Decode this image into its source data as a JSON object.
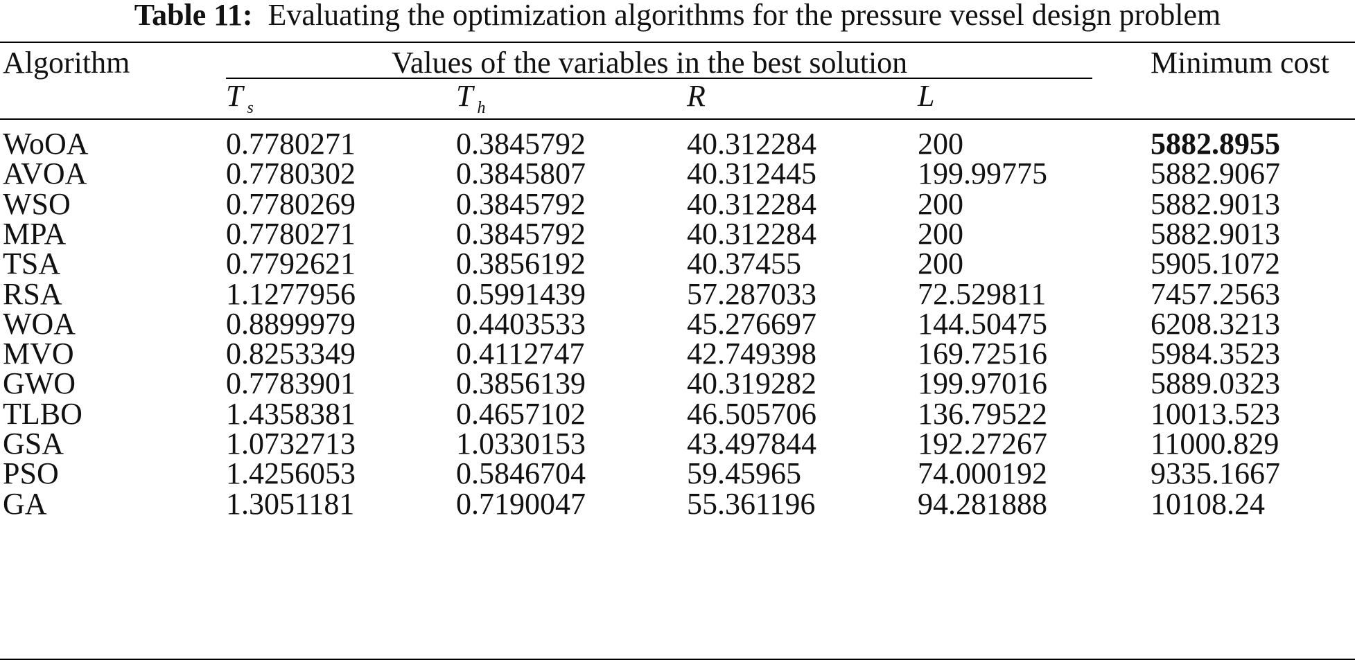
{
  "caption": {
    "label": "Table 11:",
    "text": "Evaluating the optimization algorithms for the pressure vessel design problem"
  },
  "header": {
    "algorithm": "Algorithm",
    "group": "Values of the variables in the best solution",
    "min_cost": "Minimum cost",
    "vars": [
      {
        "main": "T",
        "sub": "s"
      },
      {
        "main": "T",
        "sub": "h"
      },
      {
        "main": "R",
        "sub": ""
      },
      {
        "main": "L",
        "sub": ""
      }
    ]
  },
  "rows": [
    {
      "algo": "WoOA",
      "ts": "0.7780271",
      "th": "0.3845792",
      "r": "40.312284",
      "l": "200",
      "cost": "5882.8955",
      "best": true
    },
    {
      "algo": "AVOA",
      "ts": "0.7780302",
      "th": "0.3845807",
      "r": "40.312445",
      "l": "199.99775",
      "cost": "5882.9067",
      "best": false
    },
    {
      "algo": "WSO",
      "ts": "0.7780269",
      "th": "0.3845792",
      "r": "40.312284",
      "l": "200",
      "cost": "5882.9013",
      "best": false
    },
    {
      "algo": "MPA",
      "ts": "0.7780271",
      "th": "0.3845792",
      "r": "40.312284",
      "l": "200",
      "cost": "5882.9013",
      "best": false
    },
    {
      "algo": "TSA",
      "ts": "0.7792621",
      "th": "0.3856192",
      "r": "40.37455",
      "l": "200",
      "cost": "5905.1072",
      "best": false
    },
    {
      "algo": "RSA",
      "ts": "1.1277956",
      "th": "0.5991439",
      "r": "57.287033",
      "l": "72.529811",
      "cost": "7457.2563",
      "best": false
    },
    {
      "algo": "WOA",
      "ts": "0.8899979",
      "th": "0.4403533",
      "r": "45.276697",
      "l": "144.50475",
      "cost": "6208.3213",
      "best": false
    },
    {
      "algo": "MVO",
      "ts": "0.8253349",
      "th": "0.4112747",
      "r": "42.749398",
      "l": "169.72516",
      "cost": "5984.3523",
      "best": false
    },
    {
      "algo": "GWO",
      "ts": "0.7783901",
      "th": "0.3856139",
      "r": "40.319282",
      "l": "199.97016",
      "cost": "5889.0323",
      "best": false
    },
    {
      "algo": "TLBO",
      "ts": "1.4358381",
      "th": "0.4657102",
      "r": "46.505706",
      "l": "136.79522",
      "cost": "10013.523",
      "best": false
    },
    {
      "algo": "GSA",
      "ts": "1.0732713",
      "th": "1.0330153",
      "r": "43.497844",
      "l": "192.27267",
      "cost": "11000.829",
      "best": false
    },
    {
      "algo": "PSO",
      "ts": "1.4256053",
      "th": "0.5846704",
      "r": "59.45965",
      "l": "74.000192",
      "cost": "9335.1667",
      "best": false
    },
    {
      "algo": "GA",
      "ts": "1.3051181",
      "th": "0.7190047",
      "r": "55.361196",
      "l": "94.281888",
      "cost": "10108.24",
      "best": false
    }
  ]
}
